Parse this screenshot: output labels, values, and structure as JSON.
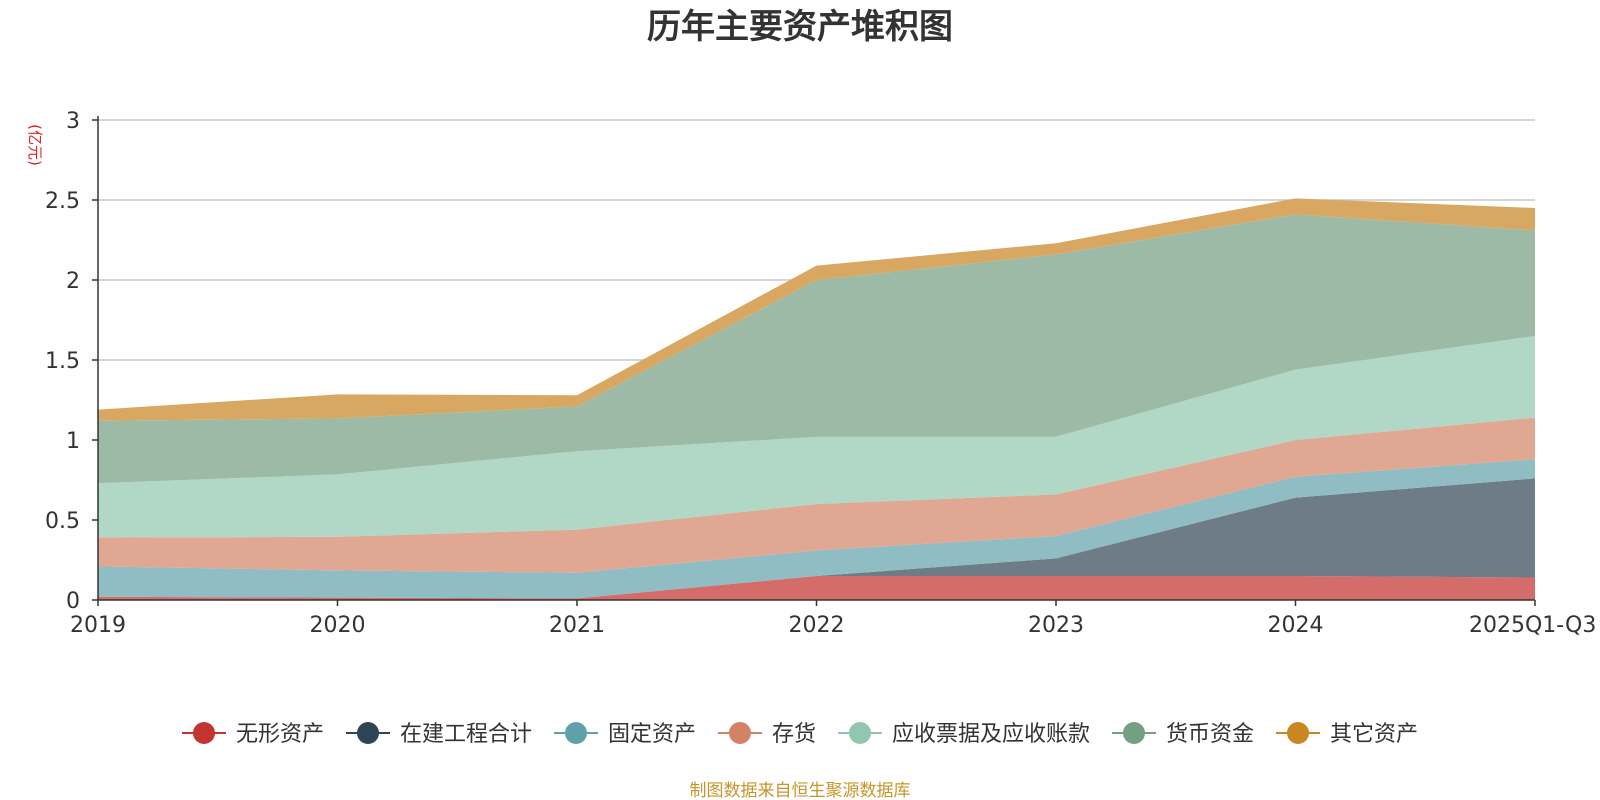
{
  "chart_data": {
    "type": "area",
    "stacked": true,
    "title": "历年主要资产堆积图",
    "unit": "(亿元)",
    "categories": [
      "2019",
      "2020",
      "2021",
      "2022",
      "2023",
      "2024",
      "2025Q1-Q3"
    ],
    "ylim": [
      0,
      3
    ],
    "yticks": [
      "0",
      "0.5",
      "1",
      "1.5",
      "2",
      "2.5",
      "3"
    ],
    "grid": true,
    "legend_position": "bottom",
    "series": [
      {
        "name": "无形资产",
        "color": "#c23531",
        "fill": "#d46c69",
        "values": [
          0.02,
          0.015,
          0.01,
          0.15,
          0.15,
          0.15,
          0.14
        ]
      },
      {
        "name": "在建工程合计",
        "color": "#2f4554",
        "fill": "#6d7c86",
        "values": [
          0.0,
          0.0,
          0.0,
          0.0,
          0.11,
          0.49,
          0.62
        ]
      },
      {
        "name": "固定资产",
        "color": "#61a0a8",
        "fill": "#90bcc3",
        "values": [
          0.19,
          0.17,
          0.16,
          0.16,
          0.14,
          0.13,
          0.12
        ]
      },
      {
        "name": "存货",
        "color": "#d48265",
        "fill": "#e0a893",
        "values": [
          0.18,
          0.21,
          0.27,
          0.29,
          0.26,
          0.23,
          0.26
        ]
      },
      {
        "name": "应收票据及应收账款",
        "color": "#91c7ae",
        "fill": "#b1d8c6",
        "values": [
          0.34,
          0.39,
          0.49,
          0.42,
          0.36,
          0.44,
          0.51
        ]
      },
      {
        "name": "货币资金",
        "color": "#749f83",
        "fill": "#9dbaa6",
        "values": [
          0.39,
          0.35,
          0.28,
          0.98,
          1.14,
          0.97,
          0.66
        ]
      },
      {
        "name": "其它资产",
        "color": "#ca8622",
        "fill": "#d8a862",
        "values": [
          0.07,
          0.15,
          0.07,
          0.09,
          0.07,
          0.1,
          0.14
        ]
      }
    ],
    "source_note": "制图数据来自恒生聚源数据库"
  }
}
